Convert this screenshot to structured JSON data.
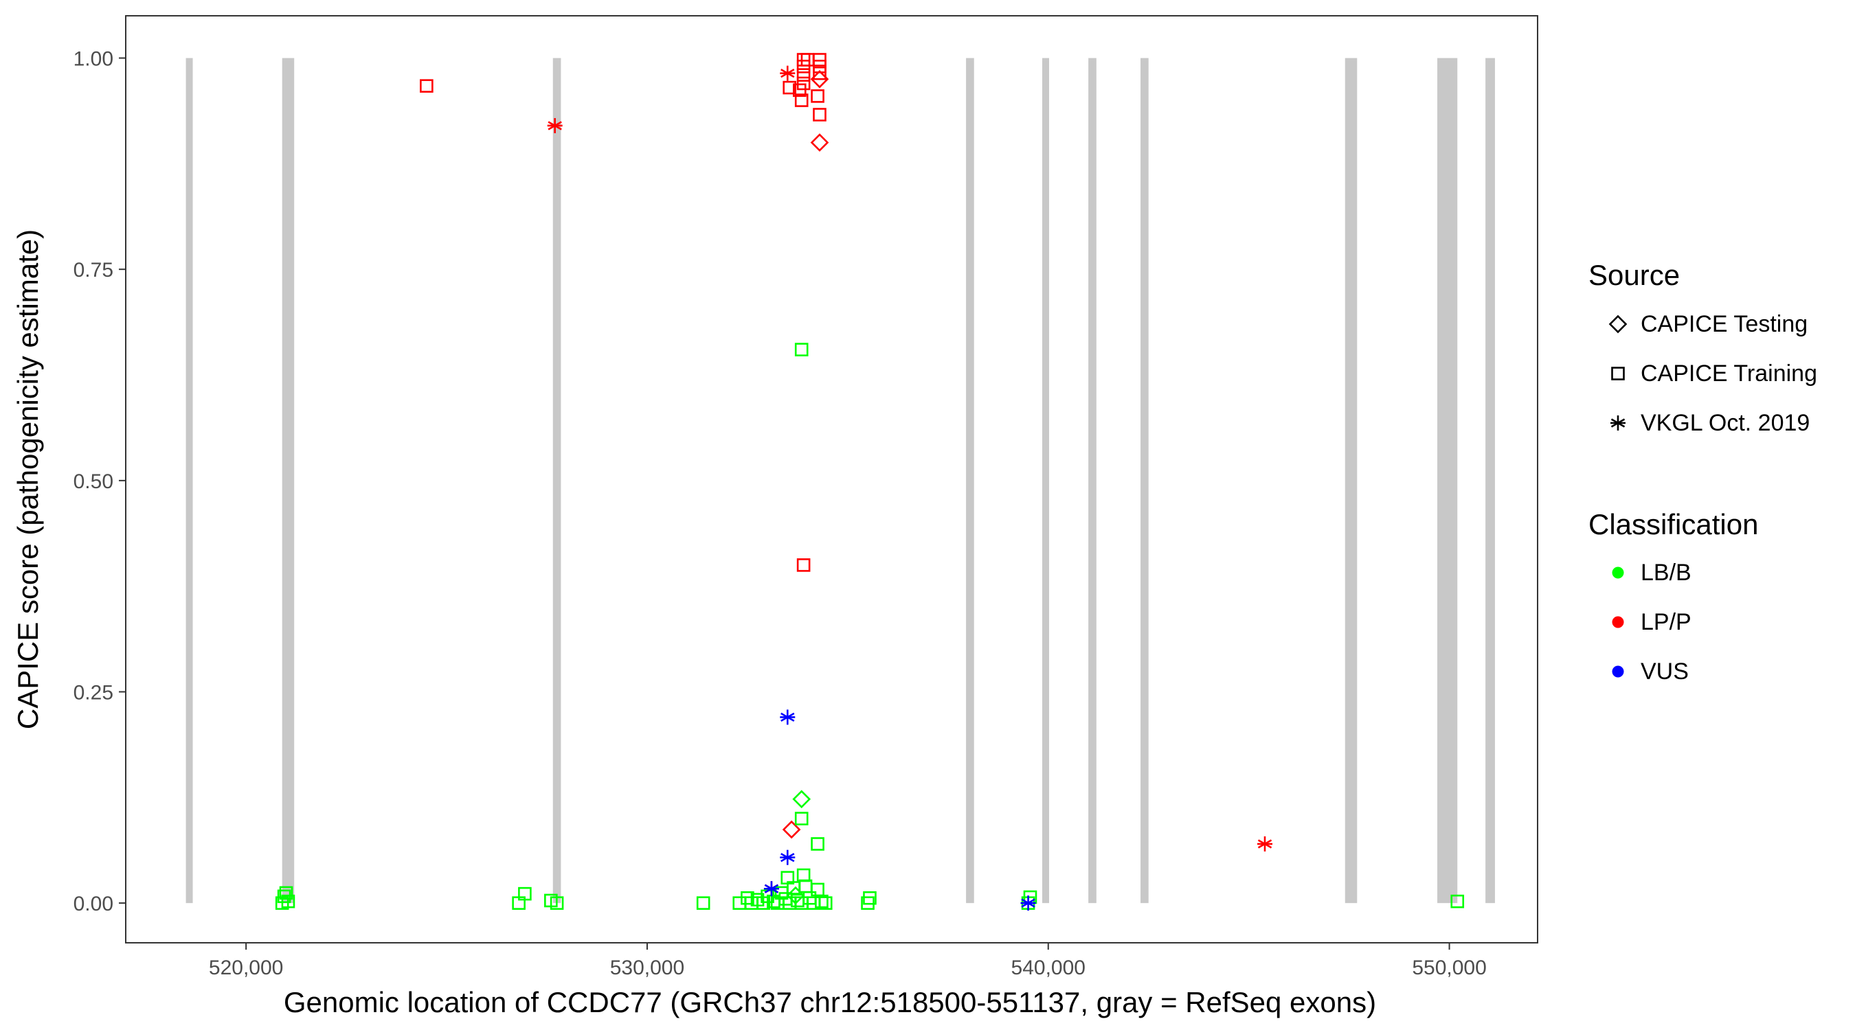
{
  "chart_data": {
    "type": "scatter",
    "title": "",
    "xlabel": "Genomic location of CCDC77 (GRCh37 chr12:518500-551137, gray = RefSeq exons)",
    "ylabel": "CAPICE score (pathogenicity estimate)",
    "xlim": [
      517000,
      552200
    ],
    "ylim": [
      -0.047,
      1.05
    ],
    "x_ticks": [
      520000,
      530000,
      540000,
      550000
    ],
    "x_tick_labels": [
      "520,000",
      "530,000",
      "540,000",
      "550,000"
    ],
    "y_ticks": [
      0,
      0.25,
      0.5,
      0.75,
      1
    ],
    "y_tick_labels": [
      "0.00",
      "0.25",
      "0.50",
      "0.75",
      "1.00"
    ],
    "grid": false,
    "exons": [
      [
        518500,
        518650
      ],
      [
        520900,
        521200
      ],
      [
        527650,
        527850
      ],
      [
        537950,
        538150
      ],
      [
        539850,
        540000
      ],
      [
        541000,
        541200
      ],
      [
        542300,
        542500
      ],
      [
        547400,
        547700
      ],
      [
        549700,
        550200
      ],
      [
        550900,
        551137
      ]
    ],
    "exon_color": "#c8c8c8",
    "legend": {
      "position": "right",
      "source_title": "Source",
      "source_items": [
        {
          "label": "CAPICE Testing",
          "shape": "diamond"
        },
        {
          "label": "CAPICE Training",
          "shape": "square"
        },
        {
          "label": "VKGL Oct. 2019",
          "shape": "asterisk"
        }
      ],
      "class_title": "Classification",
      "class_items": [
        {
          "label": "LB/B",
          "color": "#00ff00"
        },
        {
          "label": "LP/P",
          "color": "#ff0000"
        },
        {
          "label": "VUS",
          "color": "#0000ff"
        }
      ]
    },
    "points": [
      {
        "x": 524500,
        "y": 0.967,
        "source": "CAPICE Training",
        "class": "LP/P"
      },
      {
        "x": 527700,
        "y": 0.92,
        "source": "VKGL Oct. 2019",
        "class": "LP/P"
      },
      {
        "x": 533500,
        "y": 0.982,
        "source": "VKGL Oct. 2019",
        "class": "LP/P"
      },
      {
        "x": 533550,
        "y": 0.965,
        "source": "CAPICE Training",
        "class": "LP/P"
      },
      {
        "x": 533800,
        "y": 0.962,
        "source": "CAPICE Training",
        "class": "LP/P"
      },
      {
        "x": 533850,
        "y": 0.95,
        "source": "CAPICE Training",
        "class": "LP/P"
      },
      {
        "x": 533900,
        "y": 0.998,
        "source": "CAPICE Training",
        "class": "LP/P"
      },
      {
        "x": 533900,
        "y": 0.99,
        "source": "CAPICE Training",
        "class": "LP/P"
      },
      {
        "x": 533900,
        "y": 0.98,
        "source": "CAPICE Training",
        "class": "LP/P"
      },
      {
        "x": 533900,
        "y": 0.97,
        "source": "CAPICE Training",
        "class": "LP/P"
      },
      {
        "x": 534000,
        "y": 0.998,
        "source": "CAPICE Training",
        "class": "LP/P"
      },
      {
        "x": 534300,
        "y": 0.998,
        "source": "CAPICE Training",
        "class": "LP/P"
      },
      {
        "x": 534300,
        "y": 0.99,
        "source": "CAPICE Training",
        "class": "LP/P"
      },
      {
        "x": 534300,
        "y": 0.982,
        "source": "CAPICE Training",
        "class": "LP/P"
      },
      {
        "x": 534300,
        "y": 0.975,
        "source": "CAPICE Testing",
        "class": "LP/P"
      },
      {
        "x": 534250,
        "y": 0.955,
        "source": "CAPICE Training",
        "class": "LP/P"
      },
      {
        "x": 534300,
        "y": 0.933,
        "source": "CAPICE Training",
        "class": "LP/P"
      },
      {
        "x": 534300,
        "y": 0.9,
        "source": "CAPICE Testing",
        "class": "LP/P"
      },
      {
        "x": 533900,
        "y": 0.4,
        "source": "CAPICE Training",
        "class": "LP/P"
      },
      {
        "x": 533600,
        "y": 0.087,
        "source": "CAPICE Testing",
        "class": "LP/P"
      },
      {
        "x": 545400,
        "y": 0.07,
        "source": "VKGL Oct. 2019",
        "class": "LP/P"
      },
      {
        "x": 533100,
        "y": 0.017,
        "source": "VKGL Oct. 2019",
        "class": "LP/P"
      },
      {
        "x": 533850,
        "y": 0.655,
        "source": "CAPICE Training",
        "class": "LB/B"
      },
      {
        "x": 533850,
        "y": 0.123,
        "source": "CAPICE Testing",
        "class": "LB/B"
      },
      {
        "x": 533850,
        "y": 0.1,
        "source": "CAPICE Training",
        "class": "LB/B"
      },
      {
        "x": 534250,
        "y": 0.07,
        "source": "CAPICE Training",
        "class": "LB/B"
      },
      {
        "x": 533900,
        "y": 0.033,
        "source": "CAPICE Training",
        "class": "LB/B"
      },
      {
        "x": 533500,
        "y": 0.03,
        "source": "CAPICE Training",
        "class": "LB/B"
      },
      {
        "x": 520900,
        "y": 0.0,
        "source": "CAPICE Training",
        "class": "LB/B"
      },
      {
        "x": 520950,
        "y": 0.008,
        "source": "CAPICE Training",
        "class": "LB/B"
      },
      {
        "x": 521000,
        "y": 0.012,
        "source": "CAPICE Training",
        "class": "LB/B"
      },
      {
        "x": 521050,
        "y": 0.002,
        "source": "CAPICE Training",
        "class": "LB/B"
      },
      {
        "x": 526800,
        "y": 0.0,
        "source": "CAPICE Training",
        "class": "LB/B"
      },
      {
        "x": 526950,
        "y": 0.011,
        "source": "CAPICE Training",
        "class": "LB/B"
      },
      {
        "x": 527600,
        "y": 0.003,
        "source": "CAPICE Training",
        "class": "LB/B"
      },
      {
        "x": 527750,
        "y": 0.0,
        "source": "CAPICE Training",
        "class": "LB/B"
      },
      {
        "x": 531400,
        "y": 0.0,
        "source": "CAPICE Training",
        "class": "LB/B"
      },
      {
        "x": 532300,
        "y": 0.0,
        "source": "CAPICE Training",
        "class": "LB/B"
      },
      {
        "x": 532500,
        "y": 0.006,
        "source": "CAPICE Training",
        "class": "LB/B"
      },
      {
        "x": 532600,
        "y": 0.0,
        "source": "CAPICE Training",
        "class": "LB/B"
      },
      {
        "x": 532750,
        "y": 0.004,
        "source": "CAPICE Training",
        "class": "LB/B"
      },
      {
        "x": 532900,
        "y": 0.0,
        "source": "CAPICE Training",
        "class": "LB/B"
      },
      {
        "x": 533000,
        "y": 0.008,
        "source": "CAPICE Training",
        "class": "LB/B"
      },
      {
        "x": 533150,
        "y": 0.002,
        "source": "CAPICE Training",
        "class": "LB/B"
      },
      {
        "x": 533250,
        "y": 0.0,
        "source": "CAPICE Training",
        "class": "LB/B"
      },
      {
        "x": 533350,
        "y": 0.012,
        "source": "CAPICE Training",
        "class": "LB/B"
      },
      {
        "x": 533450,
        "y": 0.005,
        "source": "CAPICE Training",
        "class": "LB/B"
      },
      {
        "x": 533550,
        "y": 0.0,
        "source": "CAPICE Training",
        "class": "LB/B"
      },
      {
        "x": 533650,
        "y": 0.018,
        "source": "CAPICE Training",
        "class": "LB/B"
      },
      {
        "x": 533750,
        "y": 0.003,
        "source": "CAPICE Training",
        "class": "LB/B"
      },
      {
        "x": 533850,
        "y": 0.0,
        "source": "CAPICE Training",
        "class": "LB/B"
      },
      {
        "x": 533950,
        "y": 0.02,
        "source": "CAPICE Training",
        "class": "LB/B"
      },
      {
        "x": 534050,
        "y": 0.006,
        "source": "CAPICE Training",
        "class": "LB/B"
      },
      {
        "x": 534150,
        "y": 0.0,
        "source": "CAPICE Training",
        "class": "LB/B"
      },
      {
        "x": 534250,
        "y": 0.016,
        "source": "CAPICE Training",
        "class": "LB/B"
      },
      {
        "x": 534350,
        "y": 0.002,
        "source": "CAPICE Training",
        "class": "LB/B"
      },
      {
        "x": 534450,
        "y": 0.0,
        "source": "CAPICE Training",
        "class": "LB/B"
      },
      {
        "x": 533700,
        "y": 0.009,
        "source": "CAPICE Testing",
        "class": "LB/B"
      },
      {
        "x": 535500,
        "y": 0.0,
        "source": "CAPICE Training",
        "class": "LB/B"
      },
      {
        "x": 535550,
        "y": 0.006,
        "source": "CAPICE Training",
        "class": "LB/B"
      },
      {
        "x": 539550,
        "y": 0.007,
        "source": "CAPICE Training",
        "class": "LB/B"
      },
      {
        "x": 539500,
        "y": 0.0,
        "source": "CAPICE Training",
        "class": "LB/B"
      },
      {
        "x": 550200,
        "y": 0.002,
        "source": "CAPICE Training",
        "class": "LB/B"
      },
      {
        "x": 533500,
        "y": 0.22,
        "source": "VKGL Oct. 2019",
        "class": "VUS"
      },
      {
        "x": 533500,
        "y": 0.054,
        "source": "VKGL Oct. 2019",
        "class": "VUS"
      },
      {
        "x": 533100,
        "y": 0.017,
        "source": "VKGL Oct. 2019",
        "class": "VUS"
      },
      {
        "x": 539500,
        "y": 0.0,
        "source": "VKGL Oct. 2019",
        "class": "VUS"
      }
    ]
  }
}
